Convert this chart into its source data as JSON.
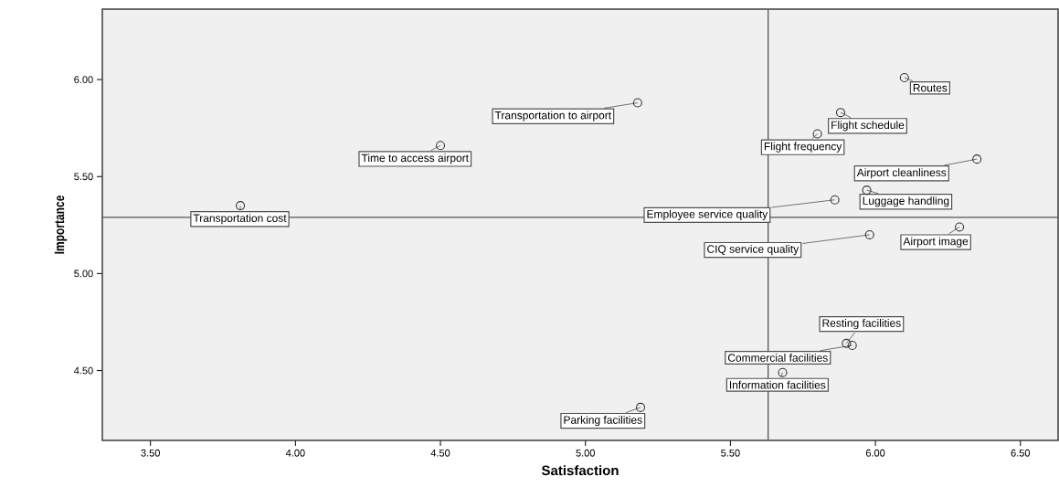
{
  "chart_data": {
    "type": "scatter",
    "xlabel": "Satisfaction",
    "ylabel": "Importance",
    "x": [
      6.1,
      5.88,
      5.8,
      6.35,
      5.97,
      5.86,
      6.29,
      5.98,
      5.18,
      4.5,
      3.81,
      5.9,
      5.92,
      5.68,
      5.19
    ],
    "series": [
      {
        "color": "#333333",
        "values": [
          6.01,
          5.83,
          5.72,
          5.59,
          5.43,
          5.38,
          5.24,
          5.2,
          5.88,
          5.66,
          5.35,
          4.64,
          4.63,
          4.49,
          4.31
        ]
      }
    ],
    "marker": "circle",
    "annotations": [
      {
        "text": "Routes",
        "x": 6.1,
        "y": 6.01
      },
      {
        "text": "Flight schedule",
        "x": 5.88,
        "y": 5.83
      },
      {
        "text": "Flight frequency",
        "x": 5.8,
        "y": 5.72
      },
      {
        "text": "Airport cleanliness",
        "x": 6.35,
        "y": 5.59
      },
      {
        "text": "Luggage handling",
        "x": 5.97,
        "y": 5.43
      },
      {
        "text": "Employee service quality",
        "x": 5.86,
        "y": 5.38
      },
      {
        "text": "Airport image",
        "x": 6.29,
        "y": 5.24
      },
      {
        "text": "CIQ service quality",
        "x": 5.98,
        "y": 5.2
      },
      {
        "text": "Transportation to airport",
        "x": 5.18,
        "y": 5.88
      },
      {
        "text": "Time to access airport",
        "x": 4.5,
        "y": 5.66
      },
      {
        "text": "Transportation cost",
        "x": 3.81,
        "y": 5.35
      },
      {
        "text": "Resting facilities",
        "x": 5.9,
        "y": 4.64
      },
      {
        "text": "Commercial facilities",
        "x": 5.92,
        "y": 4.63
      },
      {
        "text": "Information facilities",
        "x": 5.68,
        "y": 4.49
      },
      {
        "text": "Parking facilities",
        "x": 5.19,
        "y": 4.31
      }
    ],
    "ref_lines": [
      {
        "axis": "x",
        "value": 5.63
      },
      {
        "axis": "y",
        "value": 5.29
      }
    ],
    "xlim": [
      3.334,
      6.63
    ],
    "ylim": [
      4.14,
      6.363
    ],
    "xticks": [
      {
        "value": 3.5,
        "label": "3.50"
      },
      {
        "value": 4.0,
        "label": "4.00"
      },
      {
        "value": 4.5,
        "label": "4.50"
      },
      {
        "value": 5.0,
        "label": "5.00"
      },
      {
        "value": 5.5,
        "label": "5.50"
      },
      {
        "value": 6.0,
        "label": "6.00"
      },
      {
        "value": 6.5,
        "label": "6.50"
      }
    ],
    "yticks": [
      {
        "value": 4.5,
        "label": "4.50"
      },
      {
        "value": 5.0,
        "label": "5.00"
      },
      {
        "value": 5.5,
        "label": "5.50"
      },
      {
        "value": 6.0,
        "label": "6.00"
      }
    ],
    "grid": false
  }
}
